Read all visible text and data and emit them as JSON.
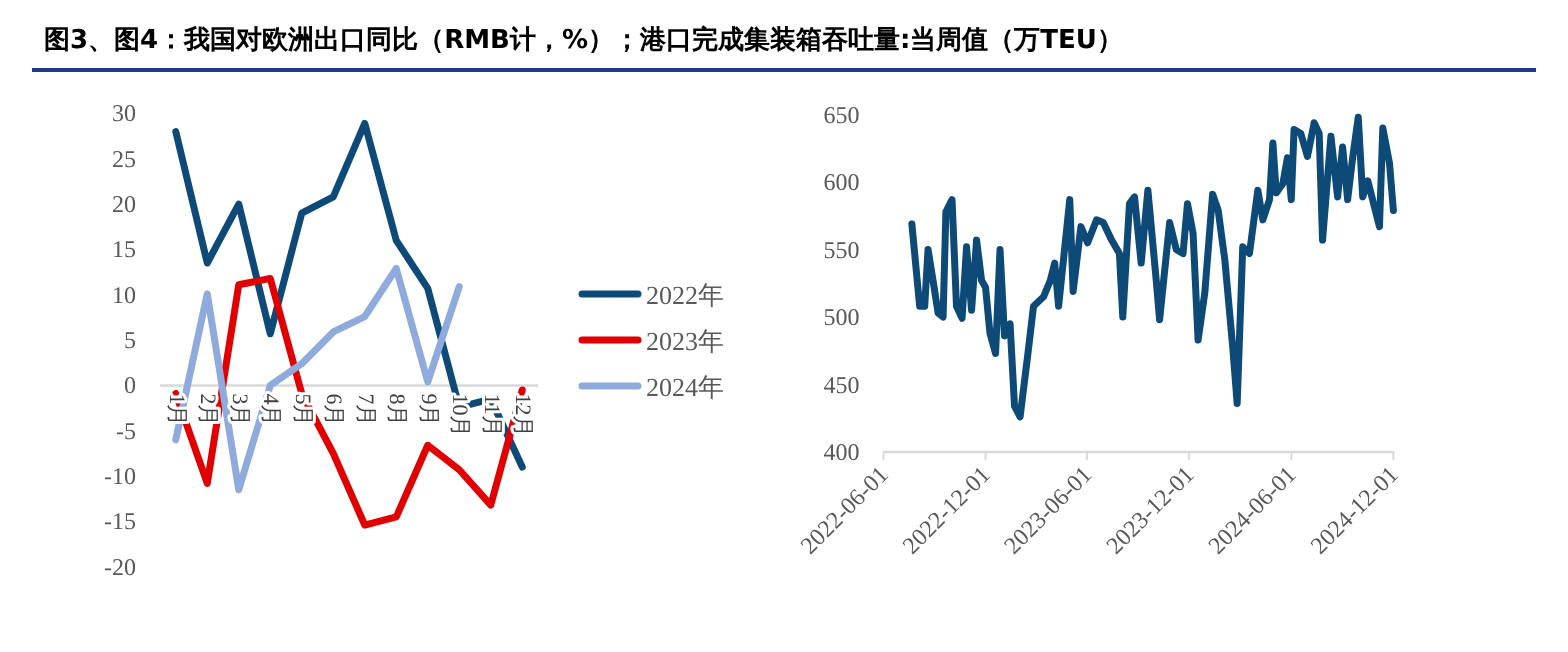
{
  "chart_data": [
    {
      "type": "line",
      "title": "图3、图4：我国对欧洲出口同比（RMB计，%）；港口完成集装箱吞吐量:当周值（万TEU）",
      "categories": [
        "1月",
        "2月",
        "3月",
        "4月",
        "5月",
        "6月",
        "7月",
        "8月",
        "9月",
        "10月",
        "11月",
        "12月"
      ],
      "series": [
        {
          "name": "2022年",
          "color": "#0d4a78",
          "values": [
            28,
            13.5,
            20,
            5.7,
            19,
            20.8,
            28.9,
            16,
            10.7,
            -2.4,
            -1.5,
            -9
          ]
        },
        {
          "name": "2023年",
          "color": "#e00000",
          "values": [
            -0.9,
            -10.8,
            11.1,
            11.8,
            -0.9,
            -7.5,
            -15.4,
            -14.5,
            -6.6,
            -9.3,
            -13.2,
            -0.5
          ]
        },
        {
          "name": "2024年",
          "color": "#8faadc",
          "values": [
            -6,
            10.1,
            -11.5,
            0,
            2.4,
            5.9,
            7.6,
            12.9,
            0.4,
            10.9,
            null,
            null
          ]
        }
      ],
      "ylim": [
        -20,
        30
      ],
      "yticks": [
        -20,
        -15,
        -10,
        -5,
        0,
        5,
        10,
        15,
        20,
        25,
        30
      ],
      "legend": "right"
    },
    {
      "type": "line",
      "x": [
        "2022-07-22",
        "2022-08-05",
        "2022-08-14",
        "2022-08-20",
        "2022-08-29",
        "2022-09-07",
        "2022-09-16",
        "2022-09-21",
        "2022-10-02",
        "2022-10-10",
        "2022-10-20",
        "2022-10-28",
        "2022-11-06",
        "2022-11-15",
        "2022-11-24",
        "2022-12-01",
        "2022-12-09",
        "2022-12-19",
        "2022-12-27",
        "2023-01-04",
        "2023-01-14",
        "2023-01-22",
        "2023-02-01",
        "2023-02-15",
        "2023-02-25",
        "2023-03-15",
        "2023-03-27",
        "2023-04-04",
        "2023-04-11",
        "2023-05-01",
        "2023-05-07",
        "2023-05-21",
        "2023-06-02",
        "2023-06-18",
        "2023-06-30",
        "2023-07-15",
        "2023-07-29",
        "2023-08-04",
        "2023-08-16",
        "2023-08-25",
        "2023-09-06",
        "2023-09-18",
        "2023-10-03",
        "2023-10-09",
        "2023-10-27",
        "2023-11-08",
        "2023-11-20",
        "2023-11-28",
        "2023-12-08",
        "2023-12-17",
        "2023-12-29",
        "2024-01-12",
        "2024-01-22",
        "2024-02-03",
        "2024-02-17",
        "2024-02-25",
        "2024-03-06",
        "2024-03-18",
        "2024-04-02",
        "2024-04-11",
        "2024-04-23",
        "2024-04-29",
        "2024-05-05",
        "2024-05-17",
        "2024-05-25",
        "2024-06-01",
        "2024-06-06",
        "2024-06-18",
        "2024-06-30",
        "2024-07-12",
        "2024-07-21",
        "2024-07-27",
        "2024-08-11",
        "2024-08-23",
        "2024-09-01",
        "2024-09-10",
        "2024-09-19",
        "2024-09-29",
        "2024-10-07",
        "2024-10-16",
        "2024-11-06",
        "2024-11-12",
        "2024-11-24",
        "2024-12-01"
      ],
      "series": [
        {
          "color": "#0d4a78",
          "values": [
            569,
            508,
            508,
            550,
            527,
            503,
            500,
            578,
            587,
            508,
            499,
            552,
            505,
            557,
            527,
            522,
            488,
            473,
            550,
            486,
            495,
            434,
            426,
            473,
            508,
            515,
            527,
            540,
            508,
            587,
            519,
            567,
            555,
            572,
            570,
            557,
            547,
            500,
            584,
            589,
            540,
            594,
            527,
            498,
            570,
            550,
            547,
            584,
            562,
            483,
            518,
            591,
            579,
            542,
            478,
            436,
            552,
            547,
            594,
            572,
            587,
            629,
            592,
            599,
            618,
            587,
            639,
            636,
            619,
            644,
            636,
            557,
            634,
            589,
            626,
            587,
            618,
            648,
            589,
            601,
            567,
            640,
            614,
            579
          ]
        }
      ],
      "xlim": [
        "2022-06-01",
        "2024-12-01"
      ],
      "xticks": [
        "2022-06-01",
        "2022-12-01",
        "2023-06-01",
        "2023-12-01",
        "2024-06-01",
        "2024-12-01"
      ],
      "ylim": [
        400,
        650
      ],
      "yticks": [
        400,
        450,
        500,
        550,
        600,
        650
      ]
    }
  ]
}
